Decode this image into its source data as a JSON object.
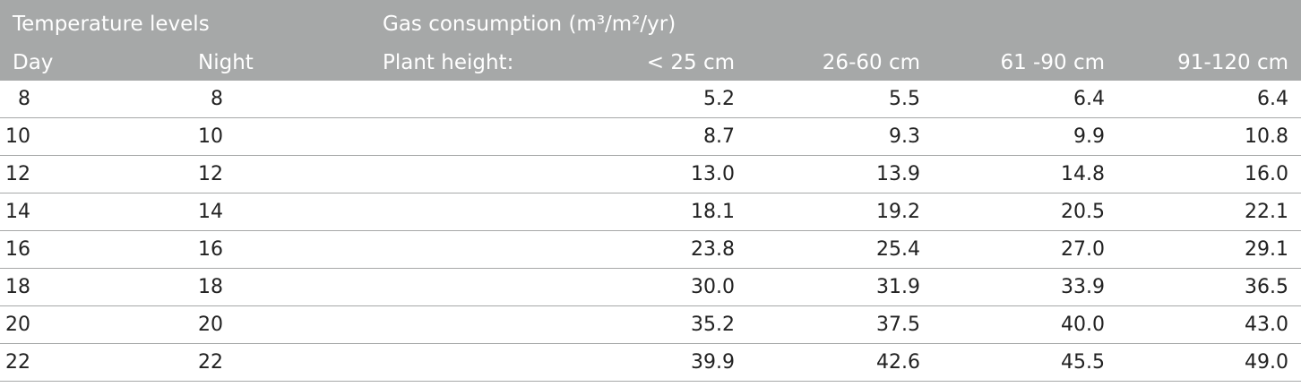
{
  "header": {
    "temperature_levels": "Temperature levels",
    "gas_consumption": "Gas consumption (m³/m²/yr)",
    "day": "Day",
    "night": "Night",
    "plant_height": "Plant height:",
    "col1": "< 25 cm",
    "col2": "26-60 cm",
    "col3": "61 -90 cm",
    "col4": "91-120 cm"
  },
  "rows": [
    {
      "day": "8",
      "night": "8",
      "v1": "5.2",
      "v2": "5.5",
      "v3": "6.4",
      "v4": "6.4"
    },
    {
      "day": "10",
      "night": "10",
      "v1": "8.7",
      "v2": "9.3",
      "v3": "9.9",
      "v4": "10.8"
    },
    {
      "day": "12",
      "night": "12",
      "v1": "13.0",
      "v2": "13.9",
      "v3": "14.8",
      "v4": "16.0"
    },
    {
      "day": "14",
      "night": "14",
      "v1": "18.1",
      "v2": "19.2",
      "v3": "20.5",
      "v4": "22.1"
    },
    {
      "day": "16",
      "night": "16",
      "v1": "23.8",
      "v2": "25.4",
      "v3": "27.0",
      "v4": "29.1"
    },
    {
      "day": "18",
      "night": "18",
      "v1": "30.0",
      "v2": "31.9",
      "v3": "33.9",
      "v4": "36.5"
    },
    {
      "day": "20",
      "night": "20",
      "v1": "35.2",
      "v2": "37.5",
      "v3": "40.0",
      "v4": "43.0"
    },
    {
      "day": "22",
      "night": "22",
      "v1": "39.9",
      "v2": "42.6",
      "v3": "45.5",
      "v4": "49.0"
    }
  ]
}
